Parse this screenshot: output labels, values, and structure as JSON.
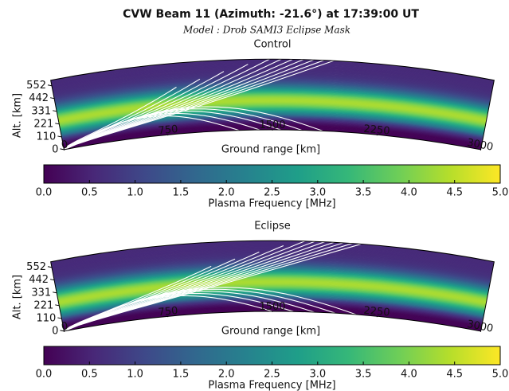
{
  "title": "CVW Beam 11 (Azimuth: -21.6°) at 17:39:00 UT",
  "subtitle": "Model : Drob SAMI3 Eclipse Mask",
  "chart_data": [
    {
      "type": "fan",
      "title": "Control",
      "xlabel": "Ground range [km]",
      "ylabel": "Alt. [km]",
      "xlim": [
        0,
        3000
      ],
      "xticks": [
        0,
        750,
        1500,
        2250,
        3000
      ],
      "ylim": [
        0,
        600
      ],
      "yticks": [
        0,
        110,
        221,
        331,
        442,
        552
      ],
      "colormap": "viridis",
      "clim": [
        0,
        5
      ],
      "cticks": [
        {
          "value": 0,
          "label": "0.0"
        },
        0.5,
        {
          "value": 1,
          "label": "1.0"
        },
        1.5,
        {
          "value": 2,
          "label": "2.0"
        },
        2.5,
        {
          "value": 3,
          "label": "3.0"
        },
        3.5,
        {
          "value": 4,
          "label": "4.0"
        },
        4.5,
        {
          "value": 5,
          "label": "5.0"
        }
      ],
      "clabel": "Plasma Frequency [MHz]"
    },
    {
      "type": "fan",
      "title": "Eclipse",
      "xlabel": "Ground range [km]",
      "ylabel": "Alt. [km]",
      "xlim": [
        0,
        3000
      ],
      "xticks": [
        0,
        750,
        1500,
        2250,
        3000
      ],
      "ylim": [
        0,
        600
      ],
      "yticks": [
        0,
        110,
        221,
        331,
        442,
        552
      ],
      "colormap": "viridis",
      "clim": [
        0,
        5
      ],
      "cticks": [
        {
          "value": 0,
          "label": "0.0"
        },
        0.5,
        {
          "value": 1,
          "label": "1.0"
        },
        1.5,
        {
          "value": 2,
          "label": "2.0"
        },
        2.5,
        {
          "value": 3,
          "label": "3.0"
        },
        3.5,
        {
          "value": 4,
          "label": "4.0"
        },
        4.5,
        {
          "value": 5,
          "label": "5.0"
        }
      ],
      "clabel": "Plasma Frequency [MHz]"
    }
  ]
}
